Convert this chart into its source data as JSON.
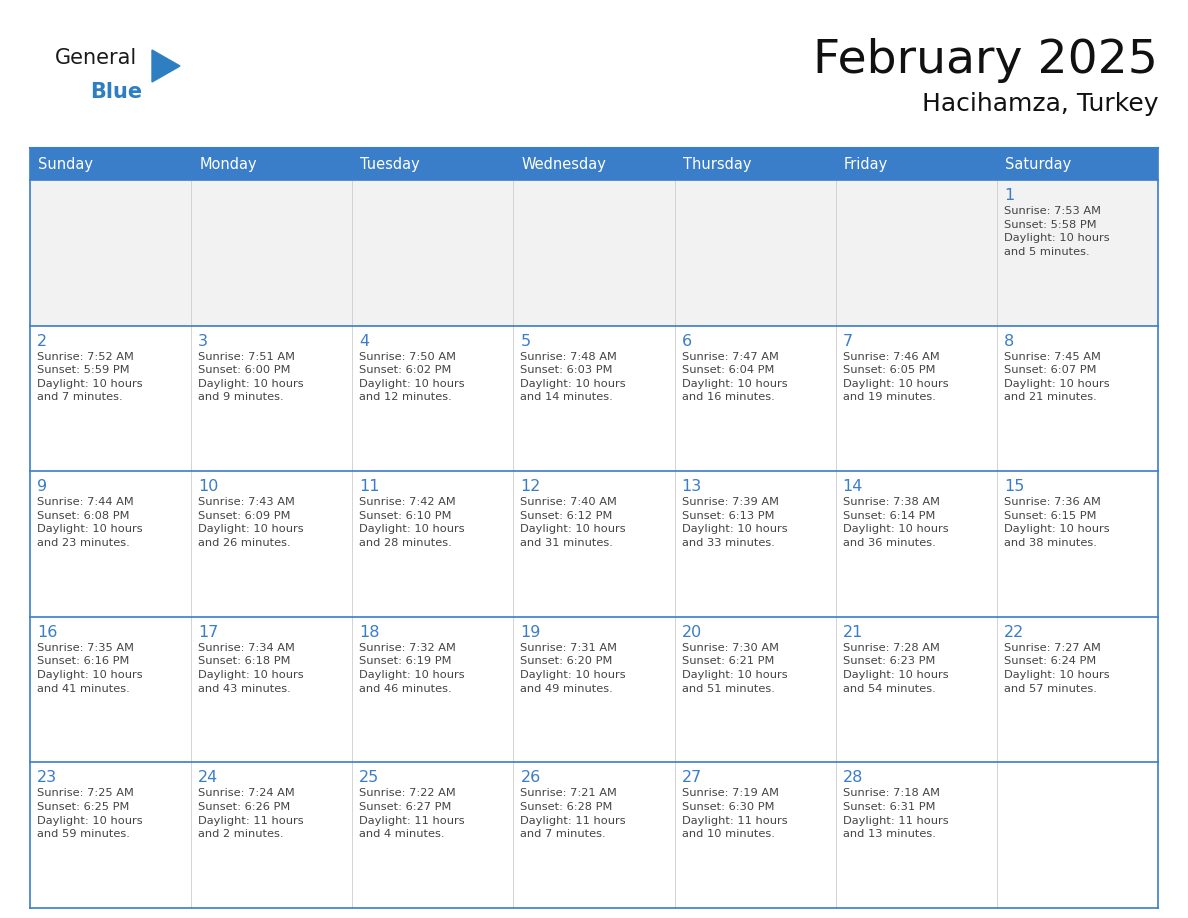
{
  "title": "February 2025",
  "subtitle": "Hacihamza, Turkey",
  "header_bg": "#3A7DC9",
  "header_text_color": "#FFFFFF",
  "cell_bg_white": "#FFFFFF",
  "cell_bg_gray": "#F2F2F2",
  "border_color_dark": "#3A7DC9",
  "border_color_light": "#AAAAAA",
  "day_number_color": "#3A7DC9",
  "text_color": "#444444",
  "days_of_week": [
    "Sunday",
    "Monday",
    "Tuesday",
    "Wednesday",
    "Thursday",
    "Friday",
    "Saturday"
  ],
  "weeks": [
    [
      {
        "day": null,
        "info": null
      },
      {
        "day": null,
        "info": null
      },
      {
        "day": null,
        "info": null
      },
      {
        "day": null,
        "info": null
      },
      {
        "day": null,
        "info": null
      },
      {
        "day": null,
        "info": null
      },
      {
        "day": 1,
        "info": "Sunrise: 7:53 AM\nSunset: 5:58 PM\nDaylight: 10 hours\nand 5 minutes."
      }
    ],
    [
      {
        "day": 2,
        "info": "Sunrise: 7:52 AM\nSunset: 5:59 PM\nDaylight: 10 hours\nand 7 minutes."
      },
      {
        "day": 3,
        "info": "Sunrise: 7:51 AM\nSunset: 6:00 PM\nDaylight: 10 hours\nand 9 minutes."
      },
      {
        "day": 4,
        "info": "Sunrise: 7:50 AM\nSunset: 6:02 PM\nDaylight: 10 hours\nand 12 minutes."
      },
      {
        "day": 5,
        "info": "Sunrise: 7:48 AM\nSunset: 6:03 PM\nDaylight: 10 hours\nand 14 minutes."
      },
      {
        "day": 6,
        "info": "Sunrise: 7:47 AM\nSunset: 6:04 PM\nDaylight: 10 hours\nand 16 minutes."
      },
      {
        "day": 7,
        "info": "Sunrise: 7:46 AM\nSunset: 6:05 PM\nDaylight: 10 hours\nand 19 minutes."
      },
      {
        "day": 8,
        "info": "Sunrise: 7:45 AM\nSunset: 6:07 PM\nDaylight: 10 hours\nand 21 minutes."
      }
    ],
    [
      {
        "day": 9,
        "info": "Sunrise: 7:44 AM\nSunset: 6:08 PM\nDaylight: 10 hours\nand 23 minutes."
      },
      {
        "day": 10,
        "info": "Sunrise: 7:43 AM\nSunset: 6:09 PM\nDaylight: 10 hours\nand 26 minutes."
      },
      {
        "day": 11,
        "info": "Sunrise: 7:42 AM\nSunset: 6:10 PM\nDaylight: 10 hours\nand 28 minutes."
      },
      {
        "day": 12,
        "info": "Sunrise: 7:40 AM\nSunset: 6:12 PM\nDaylight: 10 hours\nand 31 minutes."
      },
      {
        "day": 13,
        "info": "Sunrise: 7:39 AM\nSunset: 6:13 PM\nDaylight: 10 hours\nand 33 minutes."
      },
      {
        "day": 14,
        "info": "Sunrise: 7:38 AM\nSunset: 6:14 PM\nDaylight: 10 hours\nand 36 minutes."
      },
      {
        "day": 15,
        "info": "Sunrise: 7:36 AM\nSunset: 6:15 PM\nDaylight: 10 hours\nand 38 minutes."
      }
    ],
    [
      {
        "day": 16,
        "info": "Sunrise: 7:35 AM\nSunset: 6:16 PM\nDaylight: 10 hours\nand 41 minutes."
      },
      {
        "day": 17,
        "info": "Sunrise: 7:34 AM\nSunset: 6:18 PM\nDaylight: 10 hours\nand 43 minutes."
      },
      {
        "day": 18,
        "info": "Sunrise: 7:32 AM\nSunset: 6:19 PM\nDaylight: 10 hours\nand 46 minutes."
      },
      {
        "day": 19,
        "info": "Sunrise: 7:31 AM\nSunset: 6:20 PM\nDaylight: 10 hours\nand 49 minutes."
      },
      {
        "day": 20,
        "info": "Sunrise: 7:30 AM\nSunset: 6:21 PM\nDaylight: 10 hours\nand 51 minutes."
      },
      {
        "day": 21,
        "info": "Sunrise: 7:28 AM\nSunset: 6:23 PM\nDaylight: 10 hours\nand 54 minutes."
      },
      {
        "day": 22,
        "info": "Sunrise: 7:27 AM\nSunset: 6:24 PM\nDaylight: 10 hours\nand 57 minutes."
      }
    ],
    [
      {
        "day": 23,
        "info": "Sunrise: 7:25 AM\nSunset: 6:25 PM\nDaylight: 10 hours\nand 59 minutes."
      },
      {
        "day": 24,
        "info": "Sunrise: 7:24 AM\nSunset: 6:26 PM\nDaylight: 11 hours\nand 2 minutes."
      },
      {
        "day": 25,
        "info": "Sunrise: 7:22 AM\nSunset: 6:27 PM\nDaylight: 11 hours\nand 4 minutes."
      },
      {
        "day": 26,
        "info": "Sunrise: 7:21 AM\nSunset: 6:28 PM\nDaylight: 11 hours\nand 7 minutes."
      },
      {
        "day": 27,
        "info": "Sunrise: 7:19 AM\nSunset: 6:30 PM\nDaylight: 11 hours\nand 10 minutes."
      },
      {
        "day": 28,
        "info": "Sunrise: 7:18 AM\nSunset: 6:31 PM\nDaylight: 11 hours\nand 13 minutes."
      },
      {
        "day": null,
        "info": null
      }
    ]
  ],
  "logo_general_color": "#1A1A1A",
  "logo_blue_color": "#2E7FC1",
  "fig_width": 11.88,
  "fig_height": 9.18,
  "dpi": 100
}
